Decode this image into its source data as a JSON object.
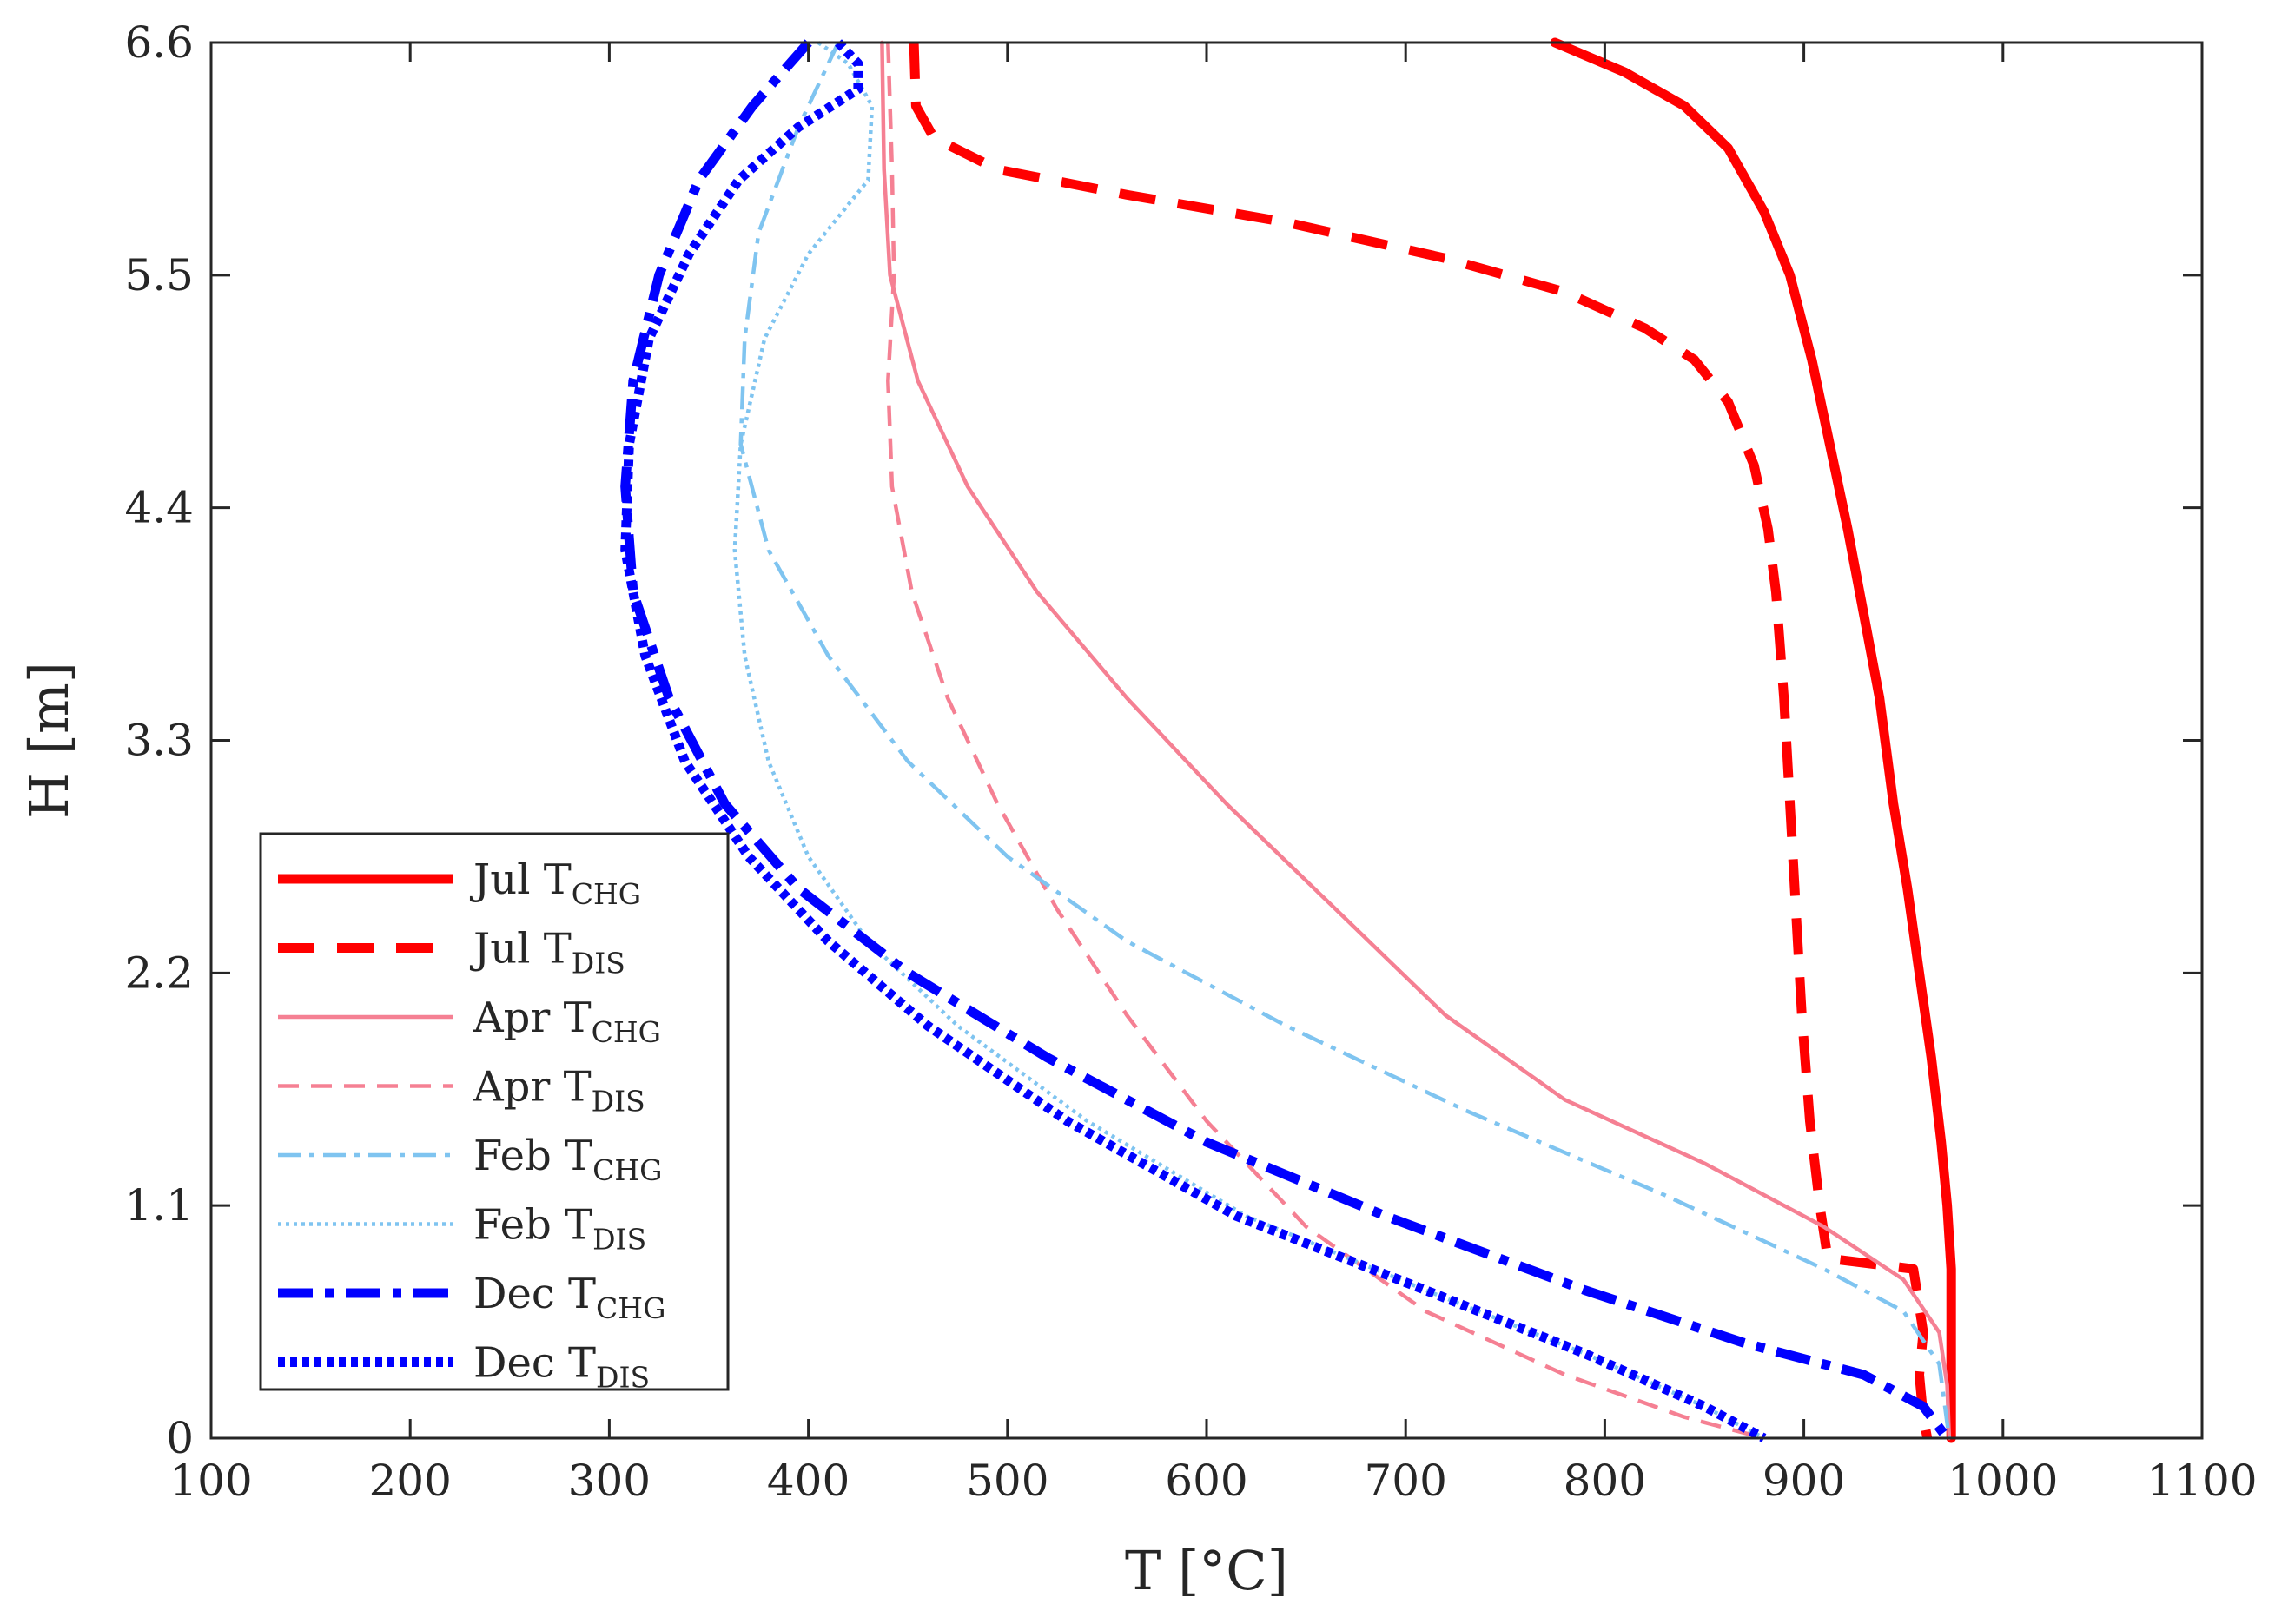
{
  "chart_data": {
    "type": "line",
    "title": "",
    "xlabel": "T [°C]",
    "ylabel": "H [m]",
    "xlim": [
      100,
      1100
    ],
    "ylim": [
      0,
      6.6
    ],
    "xticks": [
      100,
      200,
      300,
      400,
      500,
      600,
      700,
      800,
      900,
      1000,
      1100
    ],
    "yticks": [
      0,
      1.1,
      2.2,
      3.3,
      4.4,
      5.5,
      6.6
    ],
    "xtick_labels": [
      "100",
      "200",
      "300",
      "400",
      "500",
      "600",
      "700",
      "800",
      "900",
      "1000",
      "1100"
    ],
    "ytick_labels": [
      "0",
      "1.1",
      "2.2",
      "3.3",
      "4.4",
      "5.5",
      "6.6"
    ],
    "grid": false,
    "legend_position": "bottom-left",
    "series": [
      {
        "name": "Jul T_CHG",
        "label_main": "Jul T",
        "label_sub": "CHG",
        "color": "#ff0000",
        "style": "solid",
        "thick": true,
        "points": [
          [
            775,
            6.6
          ],
          [
            810,
            6.46
          ],
          [
            840,
            6.3
          ],
          [
            862,
            6.1
          ],
          [
            880,
            5.8
          ],
          [
            893,
            5.5
          ],
          [
            904,
            5.1
          ],
          [
            913,
            4.7
          ],
          [
            922,
            4.3
          ],
          [
            930,
            3.9
          ],
          [
            938,
            3.5
          ],
          [
            945,
            3.0
          ],
          [
            952,
            2.6
          ],
          [
            958,
            2.2
          ],
          [
            964,
            1.8
          ],
          [
            969,
            1.4
          ],
          [
            972,
            1.1
          ],
          [
            974,
            0.8
          ],
          [
            974,
            0.5
          ],
          [
            974,
            0.2
          ],
          [
            974,
            0
          ]
        ]
      },
      {
        "name": "Jul T_DIS",
        "label_main": "Jul T",
        "label_sub": "DIS",
        "color": "#ff0000",
        "style": "dashed",
        "thick": true,
        "points": [
          [
            453,
            6.6
          ],
          [
            454,
            6.3
          ],
          [
            463,
            6.15
          ],
          [
            495,
            6.0
          ],
          [
            560,
            5.88
          ],
          [
            640,
            5.75
          ],
          [
            720,
            5.58
          ],
          [
            780,
            5.42
          ],
          [
            820,
            5.25
          ],
          [
            845,
            5.1
          ],
          [
            862,
            4.9
          ],
          [
            875,
            4.6
          ],
          [
            882,
            4.3
          ],
          [
            886,
            4.0
          ],
          [
            890,
            3.5
          ],
          [
            893,
            3.0
          ],
          [
            896,
            2.5
          ],
          [
            899,
            2.0
          ],
          [
            903,
            1.5
          ],
          [
            908,
            1.1
          ],
          [
            912,
            0.85
          ],
          [
            955,
            0.8
          ],
          [
            960,
            0.5
          ],
          [
            958,
            0.3
          ],
          [
            960,
            0.1
          ],
          [
            962,
            0
          ]
        ]
      },
      {
        "name": "Apr T_CHG",
        "label_main": "Apr T",
        "label_sub": "CHG",
        "color": "#f58093",
        "style": "solid",
        "thick": false,
        "points": [
          [
            437,
            6.6
          ],
          [
            438,
            6.0
          ],
          [
            441,
            5.5
          ],
          [
            455,
            5.0
          ],
          [
            480,
            4.5
          ],
          [
            515,
            4.0
          ],
          [
            560,
            3.5
          ],
          [
            610,
            3.0
          ],
          [
            665,
            2.5
          ],
          [
            720,
            2.0
          ],
          [
            780,
            1.6
          ],
          [
            850,
            1.3
          ],
          [
            910,
            1.0
          ],
          [
            950,
            0.75
          ],
          [
            968,
            0.5
          ],
          [
            972,
            0.25
          ],
          [
            973,
            0
          ]
        ]
      },
      {
        "name": "Apr T_DIS",
        "label_main": "Apr T",
        "label_sub": "DIS",
        "color": "#f58093",
        "style": "dashed",
        "thick": false,
        "points": [
          [
            440,
            6.6
          ],
          [
            442,
            6.0
          ],
          [
            443,
            5.5
          ],
          [
            440,
            5.0
          ],
          [
            442,
            4.5
          ],
          [
            452,
            4.0
          ],
          [
            470,
            3.5
          ],
          [
            495,
            3.0
          ],
          [
            525,
            2.5
          ],
          [
            560,
            2.0
          ],
          [
            600,
            1.5
          ],
          [
            650,
            1.0
          ],
          [
            710,
            0.6
          ],
          [
            780,
            0.3
          ],
          [
            840,
            0.1
          ],
          [
            880,
            0
          ]
        ]
      },
      {
        "name": "Feb T_CHG",
        "label_main": "Feb T",
        "label_sub": "CHG",
        "color": "#7fc4f0",
        "style": "dashdot",
        "thick": false,
        "points": [
          [
            415,
            6.6
          ],
          [
            395,
            6.2
          ],
          [
            375,
            5.7
          ],
          [
            368,
            5.2
          ],
          [
            366,
            4.7
          ],
          [
            380,
            4.2
          ],
          [
            410,
            3.7
          ],
          [
            450,
            3.2
          ],
          [
            500,
            2.75
          ],
          [
            560,
            2.35
          ],
          [
            640,
            1.95
          ],
          [
            730,
            1.55
          ],
          [
            830,
            1.15
          ],
          [
            910,
            0.8
          ],
          [
            950,
            0.6
          ],
          [
            968,
            0.35
          ],
          [
            973,
            0
          ]
        ]
      },
      {
        "name": "Feb T_DIS",
        "label_main": "Feb T",
        "label_sub": "DIS",
        "color": "#7fc4f0",
        "style": "dotted",
        "thick": false,
        "points": [
          [
            405,
            6.6
          ],
          [
            420,
            6.5
          ],
          [
            432,
            6.3
          ],
          [
            430,
            5.95
          ],
          [
            400,
            5.6
          ],
          [
            378,
            5.2
          ],
          [
            366,
            4.7
          ],
          [
            363,
            4.2
          ],
          [
            368,
            3.7
          ],
          [
            380,
            3.2
          ],
          [
            400,
            2.75
          ],
          [
            430,
            2.35
          ],
          [
            475,
            1.95
          ],
          [
            540,
            1.5
          ],
          [
            620,
            1.05
          ],
          [
            710,
            0.7
          ],
          [
            790,
            0.4
          ],
          [
            850,
            0.15
          ],
          [
            880,
            0
          ]
        ]
      },
      {
        "name": "Dec T_CHG",
        "label_main": "Dec T",
        "label_sub": "CHG",
        "color": "#0000ff",
        "style": "dashdot",
        "thick": true,
        "points": [
          [
            400,
            6.6
          ],
          [
            372,
            6.3
          ],
          [
            345,
            5.95
          ],
          [
            325,
            5.5
          ],
          [
            312,
            5.0
          ],
          [
            308,
            4.5
          ],
          [
            312,
            4.0
          ],
          [
            330,
            3.5
          ],
          [
            358,
            3.0
          ],
          [
            395,
            2.6
          ],
          [
            450,
            2.2
          ],
          [
            520,
            1.8
          ],
          [
            600,
            1.4
          ],
          [
            690,
            1.05
          ],
          [
            790,
            0.7
          ],
          [
            870,
            0.45
          ],
          [
            930,
            0.3
          ],
          [
            960,
            0.15
          ],
          [
            972,
            0
          ]
        ]
      },
      {
        "name": "Dec T_DIS",
        "label_main": "Dec T",
        "label_sub": "DIS",
        "color": "#0000ff",
        "style": "dotted",
        "thick": true,
        "points": [
          [
            415,
            6.6
          ],
          [
            425,
            6.5
          ],
          [
            425,
            6.38
          ],
          [
            395,
            6.2
          ],
          [
            365,
            5.95
          ],
          [
            340,
            5.6
          ],
          [
            320,
            5.2
          ],
          [
            310,
            4.7
          ],
          [
            308,
            4.2
          ],
          [
            318,
            3.7
          ],
          [
            338,
            3.2
          ],
          [
            370,
            2.75
          ],
          [
            410,
            2.35
          ],
          [
            460,
            1.95
          ],
          [
            530,
            1.5
          ],
          [
            615,
            1.05
          ],
          [
            710,
            0.7
          ],
          [
            790,
            0.4
          ],
          [
            850,
            0.15
          ],
          [
            880,
            0
          ]
        ]
      }
    ]
  }
}
